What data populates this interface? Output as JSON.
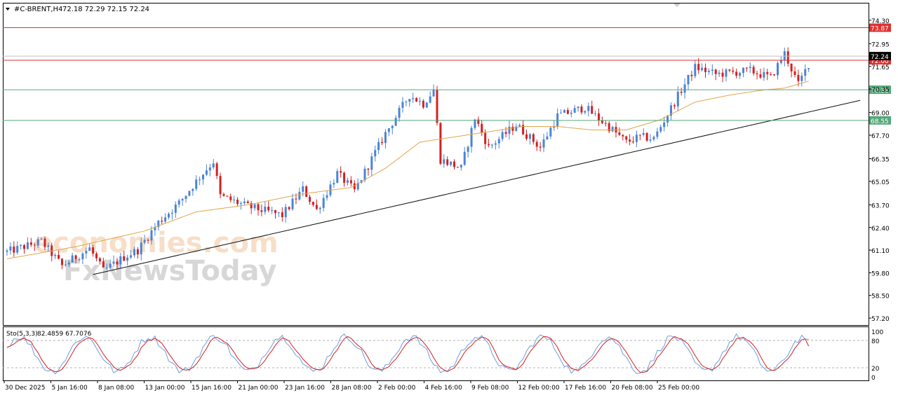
{
  "header": {
    "symbol_timeframe": "#C-BRENT,H4",
    "ohlc": "72.18 72.29 72.15 72.24"
  },
  "watermark": {
    "line1": "economies.com",
    "line2": "FxNewsToday"
  },
  "colors": {
    "bullish": "#4a84d6",
    "bearish": "#d42020",
    "moving_average": "#e3a54a",
    "resistance_red": "#e03030",
    "support_green": "#55a87a",
    "trendline": "#111111",
    "stoch_main": "#6a9fe0",
    "stoch_signal": "#d42020",
    "grid_frame": "#000000"
  },
  "chart_data": [
    {
      "type": "candlestick",
      "title": "#C-BRENT,H4",
      "price_axis_ticks": [
        "74.30",
        "72.95",
        "71.65",
        "70.35",
        "69.00",
        "67.70",
        "66.35",
        "65.05",
        "63.70",
        "62.40",
        "61.10",
        "59.80",
        "58.50",
        "57.20"
      ],
      "time_axis_ticks": [
        "30 Dec 2025",
        "5 Jan 16:00",
        "8 Jan 08:00",
        "13 Jan 00:00",
        "15 Jan 16:00",
        "21 Jan 00:00",
        "23 Jan 16:00",
        "28 Jan 08:00",
        "2 Feb 00:00",
        "4 Feb 16:00",
        "9 Feb 08:00",
        "12 Feb 00:00",
        "17 Feb 16:00",
        "20 Feb 08:00",
        "25 Feb 00:00"
      ],
      "ylim": [
        56.8,
        75.3
      ],
      "horizontal_levels": [
        {
          "label": "73.87",
          "value": 73.87,
          "color": "#e03030"
        },
        {
          "label": "72.00",
          "value": 72.0,
          "color": "#e03030"
        },
        {
          "label": "70.31",
          "value": 70.31,
          "color": "#55a87a"
        },
        {
          "label": "68.55",
          "value": 68.55,
          "color": "#55a87a"
        }
      ],
      "current_price": {
        "label": "72.24",
        "value": 72.24
      },
      "trendline": {
        "start": {
          "bar": 25,
          "value": 59.7
        },
        "end": {
          "bar": 248,
          "value": 69.7
        }
      },
      "price_path": [
        [
          0,
          61.0
        ],
        [
          10,
          61.6
        ],
        [
          16,
          60.2
        ],
        [
          24,
          61.2
        ],
        [
          28,
          59.9
        ],
        [
          34,
          60.7
        ],
        [
          38,
          61.1
        ],
        [
          44,
          62.7
        ],
        [
          50,
          63.8
        ],
        [
          56,
          65.3
        ],
        [
          60,
          66.2
        ],
        [
          62,
          64.2
        ],
        [
          70,
          63.6
        ],
        [
          80,
          63.1
        ],
        [
          86,
          64.6
        ],
        [
          90,
          63.4
        ],
        [
          96,
          65.5
        ],
        [
          101,
          64.5
        ],
        [
          110,
          67.8
        ],
        [
          117,
          70.0
        ],
        [
          121,
          69.5
        ],
        [
          124,
          70.3
        ],
        [
          126,
          66.3
        ],
        [
          132,
          65.8
        ],
        [
          136,
          68.7
        ],
        [
          140,
          67.0
        ],
        [
          148,
          68.3
        ],
        [
          155,
          67.0
        ],
        [
          160,
          68.8
        ],
        [
          168,
          69.3
        ],
        [
          176,
          68.0
        ],
        [
          180,
          67.3
        ],
        [
          184,
          67.6
        ],
        [
          188,
          67.5
        ],
        [
          196,
          70.3
        ],
        [
          200,
          71.6
        ],
        [
          206,
          71.2
        ],
        [
          216,
          71.4
        ],
        [
          222,
          71.0
        ],
        [
          226,
          72.4
        ],
        [
          230,
          70.6
        ],
        [
          233,
          71.8
        ]
      ],
      "moving_average_path": [
        [
          0,
          60.6
        ],
        [
          20,
          61.3
        ],
        [
          40,
          62.2
        ],
        [
          55,
          63.3
        ],
        [
          70,
          63.7
        ],
        [
          85,
          64.3
        ],
        [
          100,
          64.7
        ],
        [
          110,
          65.8
        ],
        [
          120,
          67.3
        ],
        [
          130,
          67.6
        ],
        [
          140,
          67.9
        ],
        [
          150,
          68.2
        ],
        [
          160,
          68.2
        ],
        [
          170,
          68.0
        ],
        [
          180,
          68.0
        ],
        [
          190,
          68.6
        ],
        [
          200,
          69.6
        ],
        [
          210,
          70.0
        ],
        [
          220,
          70.3
        ],
        [
          226,
          70.4
        ],
        [
          233,
          70.8
        ]
      ]
    },
    {
      "type": "line",
      "title": "Sto(5,3,3)",
      "readout": "82.4859 67.7076",
      "y_ticks": [
        "100",
        "80",
        "20",
        "0"
      ],
      "ylim": [
        0,
        100
      ],
      "levels": [
        80,
        20
      ],
      "series": [
        {
          "name": "main",
          "color": "#6a9fe0",
          "last": 82.4859
        },
        {
          "name": "signal",
          "color": "#d42020",
          "last": 67.7076
        }
      ]
    }
  ]
}
